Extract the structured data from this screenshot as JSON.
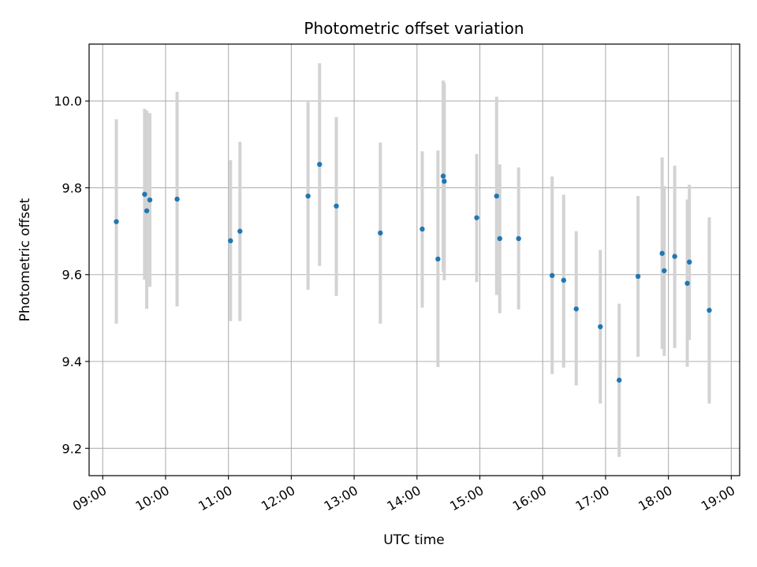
{
  "chart_data": {
    "type": "scatter",
    "title": "Photometric offset variation",
    "xlabel": "UTC time",
    "ylabel": "Photometric offset",
    "x_ticks": [
      "09:00",
      "10:00",
      "11:00",
      "12:00",
      "13:00",
      "14:00",
      "15:00",
      "16:00",
      "17:00",
      "18:00",
      "19:00"
    ],
    "y_ticks": [
      "9.2",
      "9.4",
      "9.6",
      "9.8",
      "10.0"
    ],
    "xlim": [
      "08:47",
      "19:08"
    ],
    "ylim": [
      9.137,
      10.131
    ],
    "grid": true,
    "colors": {
      "points": "#1f77b4",
      "errorbars": "#d3d3d3",
      "grid": "#b0b0b0"
    },
    "series": [
      {
        "points": [
          {
            "x": "09:13",
            "y": 9.722,
            "ylow": 9.487,
            "yhigh": 9.958
          },
          {
            "x": "09:40",
            "y": 9.785,
            "ylow": 9.588,
            "yhigh": 9.982
          },
          {
            "x": "09:42",
            "y": 9.747,
            "ylow": 9.521,
            "yhigh": 9.978
          },
          {
            "x": "09:45",
            "y": 9.772,
            "ylow": 9.572,
            "yhigh": 9.972
          },
          {
            "x": "10:11",
            "y": 9.774,
            "ylow": 9.527,
            "yhigh": 10.021
          },
          {
            "x": "11:02",
            "y": 9.678,
            "ylow": 9.493,
            "yhigh": 9.864
          },
          {
            "x": "11:11",
            "y": 9.7,
            "ylow": 9.493,
            "yhigh": 9.906
          },
          {
            "x": "12:16",
            "y": 9.781,
            "ylow": 9.565,
            "yhigh": 9.998
          },
          {
            "x": "12:27",
            "y": 9.854,
            "ylow": 9.62,
            "yhigh": 10.087
          },
          {
            "x": "12:43",
            "y": 9.758,
            "ylow": 9.551,
            "yhigh": 9.963
          },
          {
            "x": "13:25",
            "y": 9.696,
            "ylow": 9.487,
            "yhigh": 9.904
          },
          {
            "x": "14:05",
            "y": 9.705,
            "ylow": 9.524,
            "yhigh": 9.884
          },
          {
            "x": "14:20",
            "y": 9.636,
            "ylow": 9.387,
            "yhigh": 9.886
          },
          {
            "x": "14:25",
            "y": 9.827,
            "ylow": 9.607,
            "yhigh": 10.047
          },
          {
            "x": "14:26",
            "y": 9.815,
            "ylow": 9.587,
            "yhigh": 10.042
          },
          {
            "x": "14:57",
            "y": 9.731,
            "ylow": 9.583,
            "yhigh": 9.878
          },
          {
            "x": "15:16",
            "y": 9.781,
            "ylow": 9.553,
            "yhigh": 10.01
          },
          {
            "x": "15:19",
            "y": 9.683,
            "ylow": 9.511,
            "yhigh": 9.854
          },
          {
            "x": "15:37",
            "y": 9.683,
            "ylow": 9.52,
            "yhigh": 9.847
          },
          {
            "x": "16:09",
            "y": 9.598,
            "ylow": 9.371,
            "yhigh": 9.826
          },
          {
            "x": "16:20",
            "y": 9.587,
            "ylow": 9.386,
            "yhigh": 9.784
          },
          {
            "x": "16:32",
            "y": 9.521,
            "ylow": 9.345,
            "yhigh": 9.7
          },
          {
            "x": "16:55",
            "y": 9.48,
            "ylow": 9.303,
            "yhigh": 9.657
          },
          {
            "x": "17:13",
            "y": 9.357,
            "ylow": 9.18,
            "yhigh": 9.533
          },
          {
            "x": "17:31",
            "y": 9.596,
            "ylow": 9.411,
            "yhigh": 9.781
          },
          {
            "x": "17:54",
            "y": 9.649,
            "ylow": 9.429,
            "yhigh": 9.87
          },
          {
            "x": "17:56",
            "y": 9.609,
            "ylow": 9.413,
            "yhigh": 9.804
          },
          {
            "x": "18:06",
            "y": 9.642,
            "ylow": 9.431,
            "yhigh": 9.851
          },
          {
            "x": "18:18",
            "y": 9.58,
            "ylow": 9.388,
            "yhigh": 9.773
          },
          {
            "x": "18:20",
            "y": 9.629,
            "ylow": 9.45,
            "yhigh": 9.807
          },
          {
            "x": "18:39",
            "y": 9.518,
            "ylow": 9.303,
            "yhigh": 9.732
          }
        ]
      }
    ]
  }
}
